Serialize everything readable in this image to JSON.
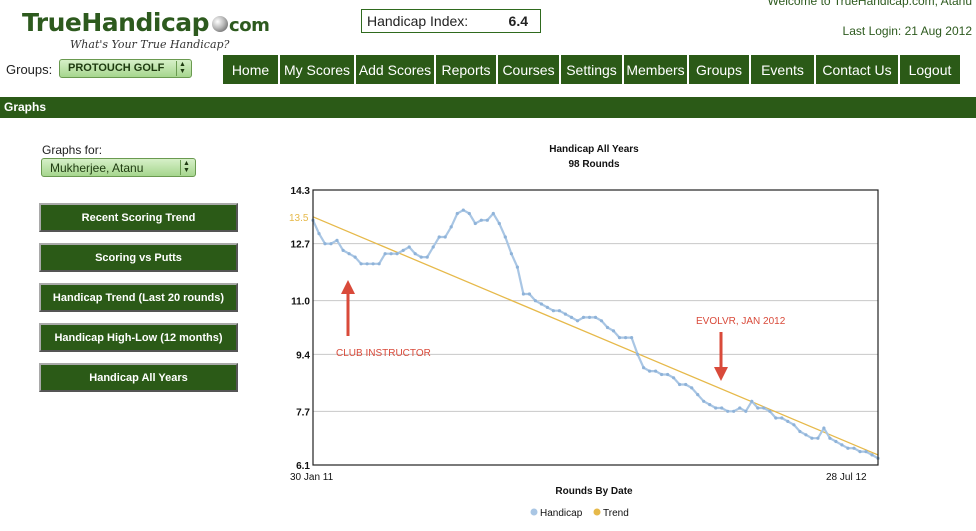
{
  "header": {
    "logo_text": "TrueHandicap",
    "logo_com": "com",
    "tagline": "What's Your True Handicap?",
    "handicap_index_label": "Handicap Index:",
    "handicap_index_value": "6.4",
    "welcome": "Welcome to TrueHandicap.com, Atanu",
    "last_login": "Last Login: 21 Aug 2012"
  },
  "groups": {
    "label": "Groups:",
    "selected": "PROTOUCH GOLF"
  },
  "nav": [
    "Home",
    "My Scores",
    "Add Scores",
    "Reports",
    "Courses",
    "Settings",
    "Members",
    "Groups",
    "Events",
    "Contact Us",
    "Logout"
  ],
  "section_title": "Graphs",
  "graphs_for": {
    "label": "Graphs for:",
    "selected": "Mukherjee, Atanu"
  },
  "graph_buttons": [
    "Recent Scoring Trend",
    "Scoring vs Putts",
    "Handicap Trend (Last 20 rounds)",
    "Handicap High-Low (12 months)",
    "Handicap All Years"
  ],
  "colors": {
    "brand_green": "#2b5a17",
    "series_handicap": "#a9c6e4",
    "series_trend": "#e6b94a",
    "annotation": "#d94a3a"
  },
  "chart_data": {
    "type": "line",
    "title": "Handicap All Years",
    "subtitle": "98 Rounds",
    "xlabel": "Rounds By Date",
    "ylabel": "",
    "ylim": [
      6.1,
      14.3
    ],
    "y_ticks": [
      "14.3",
      "12.7",
      "11.0",
      "9.4",
      "7.7",
      "6.1"
    ],
    "x_tick_labels": [
      "30 Jan 11",
      "28 Jul 12"
    ],
    "trend_start_label": "13.5",
    "series": [
      {
        "name": "Handicap",
        "values": [
          13.4,
          13.0,
          12.7,
          12.7,
          12.8,
          12.5,
          12.4,
          12.3,
          12.1,
          12.1,
          12.1,
          12.1,
          12.4,
          12.4,
          12.4,
          12.5,
          12.6,
          12.4,
          12.3,
          12.3,
          12.6,
          12.9,
          12.9,
          13.2,
          13.6,
          13.7,
          13.6,
          13.3,
          13.4,
          13.4,
          13.6,
          13.3,
          12.9,
          12.4,
          12.0,
          11.2,
          11.2,
          11.0,
          10.9,
          10.8,
          10.7,
          10.7,
          10.6,
          10.5,
          10.4,
          10.5,
          10.5,
          10.5,
          10.4,
          10.2,
          10.1,
          9.9,
          9.9,
          9.9,
          9.4,
          9.0,
          8.9,
          8.9,
          8.8,
          8.8,
          8.7,
          8.5,
          8.5,
          8.4,
          8.2,
          8.0,
          7.9,
          7.8,
          7.8,
          7.7,
          7.7,
          7.8,
          7.7,
          8.0,
          7.8,
          7.8,
          7.7,
          7.5,
          7.5,
          7.4,
          7.3,
          7.1,
          7.0,
          6.9,
          6.9,
          7.2,
          6.9,
          6.8,
          6.7,
          6.6,
          6.6,
          6.5,
          6.5,
          6.4,
          6.3
        ]
      },
      {
        "name": "Trend",
        "values": [
          13.5,
          6.4
        ]
      }
    ],
    "annotations": [
      {
        "text": "CLUB INSTRUCTOR",
        "round": 11
      },
      {
        "text": "EVOLVR, JAN 2012",
        "round": 68
      }
    ],
    "legend": {
      "position": "bottom-center",
      "entries": [
        "Handicap",
        "Trend"
      ]
    },
    "grid": true
  }
}
